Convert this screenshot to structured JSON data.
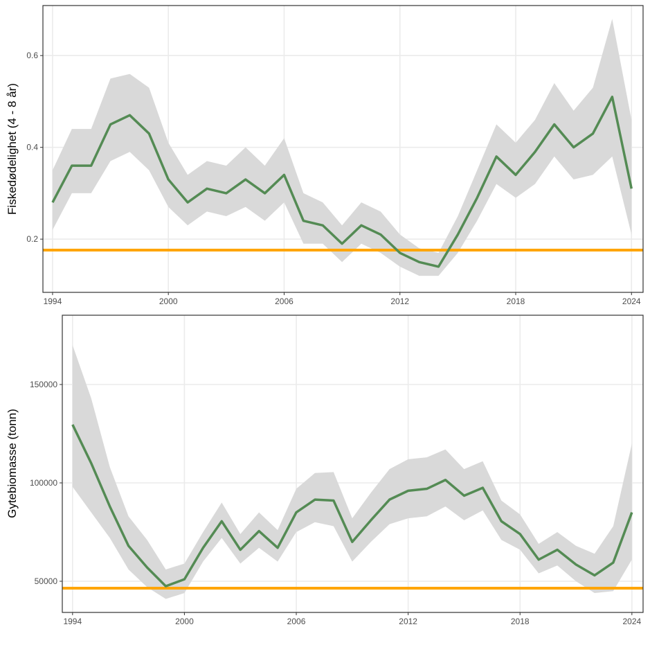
{
  "chart_data": [
    {
      "type": "line",
      "ylabel": "Fiskedødelighet (4 - 8 år)",
      "xlabel": "",
      "x": [
        1994,
        1995,
        1996,
        1997,
        1998,
        1999,
        2000,
        2001,
        2002,
        2003,
        2004,
        2005,
        2006,
        2007,
        2008,
        2009,
        2010,
        2011,
        2012,
        2013,
        2014,
        2015,
        2016,
        2017,
        2018,
        2019,
        2020,
        2021,
        2022,
        2023,
        2024
      ],
      "values": [
        0.28,
        0.36,
        0.36,
        0.45,
        0.47,
        0.43,
        0.33,
        0.28,
        0.31,
        0.3,
        0.33,
        0.3,
        0.34,
        0.24,
        0.23,
        0.19,
        0.23,
        0.21,
        0.17,
        0.15,
        0.14,
        0.21,
        0.29,
        0.38,
        0.34,
        0.39,
        0.45,
        0.4,
        0.43,
        0.51,
        0.31
      ],
      "lower": [
        0.22,
        0.3,
        0.3,
        0.37,
        0.39,
        0.35,
        0.27,
        0.23,
        0.26,
        0.25,
        0.27,
        0.24,
        0.28,
        0.19,
        0.19,
        0.15,
        0.19,
        0.17,
        0.14,
        0.12,
        0.12,
        0.17,
        0.24,
        0.32,
        0.29,
        0.32,
        0.38,
        0.33,
        0.34,
        0.38,
        0.21
      ],
      "upper": [
        0.35,
        0.44,
        0.44,
        0.55,
        0.56,
        0.53,
        0.41,
        0.34,
        0.37,
        0.36,
        0.4,
        0.36,
        0.42,
        0.3,
        0.28,
        0.23,
        0.28,
        0.26,
        0.21,
        0.18,
        0.17,
        0.25,
        0.35,
        0.45,
        0.41,
        0.46,
        0.54,
        0.48,
        0.53,
        0.68,
        0.46
      ],
      "reference_line": 0.176,
      "xticks": [
        "1994",
        "2000",
        "2006",
        "2012",
        "2018",
        "2024"
      ],
      "yticks": [
        "0.2",
        "0.4",
        "0.6"
      ],
      "xlim": [
        1993.5,
        2024.6
      ],
      "ylim": [
        0.084,
        0.709
      ],
      "grid": true,
      "colors": {
        "line": "#548B54",
        "band": "#D9D9D9",
        "reference": "#FFA500"
      }
    },
    {
      "type": "line",
      "ylabel": "Gytebiomasse (tonn)",
      "xlabel": "",
      "x": [
        1994,
        1995,
        1996,
        1997,
        1998,
        1999,
        2000,
        2001,
        2002,
        2003,
        2004,
        2005,
        2006,
        2007,
        2008,
        2009,
        2010,
        2011,
        2012,
        2013,
        2014,
        2015,
        2016,
        2017,
        2018,
        2019,
        2020,
        2021,
        2022,
        2023,
        2024
      ],
      "values": [
        129600,
        110000,
        88000,
        68000,
        57000,
        47500,
        51000,
        67000,
        80500,
        66000,
        75500,
        67000,
        85000,
        91500,
        91000,
        70000,
        81000,
        91500,
        96000,
        97000,
        101500,
        93500,
        97500,
        80500,
        74000,
        61000,
        66000,
        58500,
        53000,
        59500,
        85000
      ],
      "lower": [
        98000,
        85000,
        72000,
        56000,
        47000,
        41000,
        44000,
        60000,
        72000,
        59000,
        67000,
        60000,
        75000,
        80000,
        78000,
        60000,
        70000,
        79000,
        82000,
        83000,
        88000,
        81000,
        86000,
        71000,
        66000,
        54000,
        58000,
        50000,
        44000,
        45000,
        61000
      ],
      "upper": [
        170000,
        143000,
        108000,
        83000,
        71000,
        56000,
        59000,
        75000,
        90000,
        74000,
        85000,
        76000,
        97000,
        105000,
        105500,
        82000,
        95000,
        107000,
        112000,
        113000,
        117000,
        107000,
        111000,
        91000,
        84000,
        69000,
        75000,
        68000,
        64000,
        78000,
        120000
      ],
      "reference_line": 46500,
      "xticks": [
        "1994",
        "2000",
        "2006",
        "2012",
        "2018",
        "2024"
      ],
      "yticks": [
        "50000",
        "100000",
        "150000"
      ],
      "xlim": [
        1993.45,
        2024.6
      ],
      "ylim": [
        34155,
        185211
      ],
      "grid": true,
      "colors": {
        "line": "#548B54",
        "band": "#D9D9D9",
        "reference": "#FFA500"
      }
    }
  ]
}
